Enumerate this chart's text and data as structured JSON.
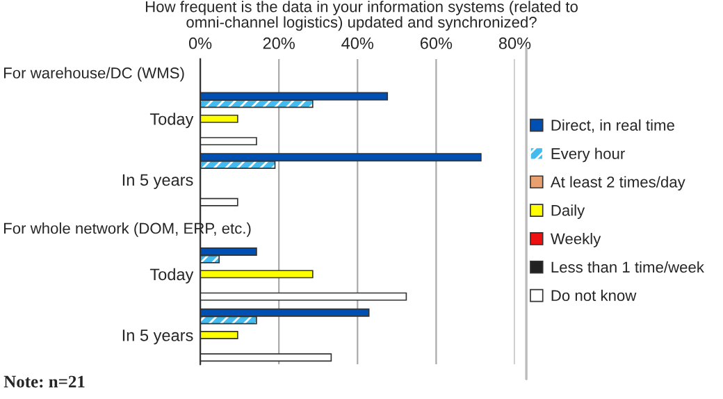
{
  "chart_data": {
    "type": "bar",
    "orientation": "horizontal",
    "title": "How frequent is the data in your information systems (related to\nomni-channel logistics) updated and synchronized?",
    "categories": [
      "Today",
      "In 5 years",
      "Today",
      "In 5 years"
    ],
    "series": [
      {
        "name": "Direct, in real time",
        "color": "#0050b4",
        "values": [
          47.6,
          71.4,
          14.3,
          42.9
        ]
      },
      {
        "name": "Every hour",
        "color": "#44bbee",
        "values": [
          28.6,
          19.0,
          4.8,
          14.3
        ]
      },
      {
        "name": "At least 2 times/day",
        "color": "#e8a070",
        "values": [
          0,
          0,
          0,
          0
        ]
      },
      {
        "name": "Daily",
        "color": "#ffff00",
        "values": [
          9.5,
          0,
          28.6,
          9.5
        ]
      },
      {
        "name": "Weekly",
        "color": "#ee1111",
        "values": [
          0,
          0,
          0,
          0
        ]
      },
      {
        "name": "Less than 1 time/week",
        "color": "#222222",
        "values": [
          0,
          0,
          0,
          0
        ]
      },
      {
        "name": "Do not know",
        "color": "#ffffff",
        "values": [
          14.3,
          9.5,
          52.4,
          33.3
        ]
      }
    ],
    "xlim": [
      0,
      80
    ],
    "xticks": [
      {
        "value": 0,
        "label": "0%"
      },
      {
        "value": 20,
        "label": "20%"
      },
      {
        "value": 40,
        "label": "40%"
      },
      {
        "value": 60,
        "label": "60%"
      },
      {
        "value": 80,
        "label": "80%"
      }
    ],
    "grid": "x",
    "legend": "right",
    "annotations": [
      "For warehouse/DC (WMS)",
      "For whole network (DOM, ERP, etc.)",
      "Note: n=21"
    ]
  }
}
